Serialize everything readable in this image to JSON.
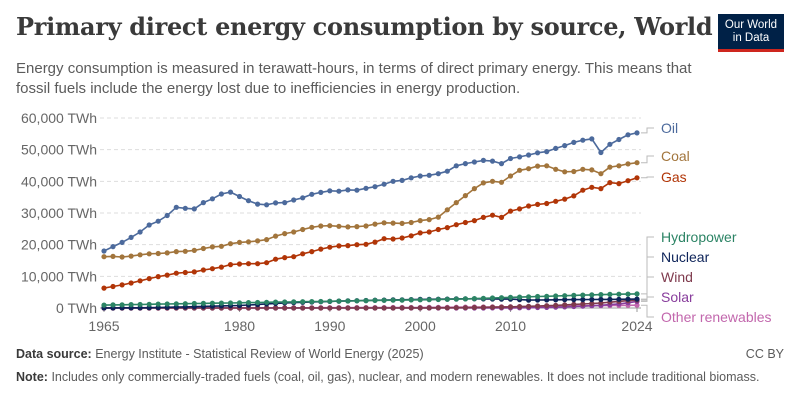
{
  "header": {
    "title": "Primary direct energy consumption by source, World",
    "subtitle": "Energy consumption is measured in terawatt-hours, in terms of direct primary energy. This means that fossil fuels include the energy lost due to inefficiencies in energy production.",
    "logo_line1": "Our World",
    "logo_line2": "in Data"
  },
  "footer": {
    "source_label": "Data source:",
    "source_text": "Energy Institute - Statistical Review of World Energy (2025)",
    "license": "CC BY",
    "note_label": "Note:",
    "note_text": "Includes only commercially-traded fuels (coal, oil, gas), nuclear, and modern renewables. It does not include traditional biomass."
  },
  "chart_data": {
    "type": "line",
    "title": "Primary direct energy consumption by source, World",
    "xlabel": "",
    "ylabel": "",
    "x_start": 1965,
    "x_end": 2024,
    "xlim": [
      1965,
      2024
    ],
    "ylim": [
      0,
      60000
    ],
    "y_ticks": [
      0,
      10000,
      20000,
      30000,
      40000,
      50000,
      60000
    ],
    "y_tick_labels": [
      "0 TWh",
      "10,000 TWh",
      "20,000 TWh",
      "30,000 TWh",
      "40,000 TWh",
      "50,000 TWh",
      "60,000 TWh"
    ],
    "x_ticks": [
      1965,
      1980,
      1990,
      2000,
      2010,
      2024
    ],
    "x_tick_labels": [
      "1965",
      "1980",
      "1990",
      "2000",
      "2010",
      "2024"
    ],
    "grid": "horizontal dashed",
    "legend": "right, labels at line ends",
    "series": [
      {
        "name": "Oil",
        "color": "#4c6a9c",
        "keypoints": [
          [
            1965,
            18000
          ],
          [
            1966,
            19400
          ],
          [
            1967,
            20700
          ],
          [
            1968,
            22300
          ],
          [
            1969,
            24000
          ],
          [
            1970,
            26200
          ],
          [
            1971,
            27400
          ],
          [
            1972,
            29200
          ],
          [
            1973,
            31800
          ],
          [
            1974,
            31500
          ],
          [
            1975,
            31300
          ],
          [
            1976,
            33300
          ],
          [
            1977,
            34500
          ],
          [
            1978,
            36000
          ],
          [
            1979,
            36600
          ],
          [
            1980,
            35200
          ],
          [
            1981,
            33900
          ],
          [
            1982,
            32800
          ],
          [
            1983,
            32600
          ],
          [
            1984,
            33200
          ],
          [
            1985,
            33300
          ],
          [
            1986,
            34100
          ],
          [
            1987,
            34800
          ],
          [
            1988,
            35900
          ],
          [
            1989,
            36500
          ],
          [
            1990,
            37000
          ],
          [
            1991,
            36900
          ],
          [
            1992,
            37300
          ],
          [
            1993,
            37200
          ],
          [
            1994,
            37800
          ],
          [
            1995,
            38300
          ],
          [
            1996,
            39100
          ],
          [
            1997,
            40000
          ],
          [
            1998,
            40300
          ],
          [
            1999,
            41100
          ],
          [
            2000,
            41700
          ],
          [
            2001,
            41900
          ],
          [
            2002,
            42400
          ],
          [
            2003,
            43200
          ],
          [
            2004,
            44900
          ],
          [
            2005,
            45600
          ],
          [
            2006,
            46100
          ],
          [
            2007,
            46600
          ],
          [
            2008,
            46400
          ],
          [
            2009,
            45600
          ],
          [
            2010,
            47200
          ],
          [
            2011,
            47700
          ],
          [
            2012,
            48300
          ],
          [
            2013,
            49000
          ],
          [
            2014,
            49400
          ],
          [
            2015,
            50400
          ],
          [
            2016,
            51300
          ],
          [
            2017,
            52300
          ],
          [
            2018,
            53000
          ],
          [
            2019,
            53400
          ],
          [
            2020,
            49100
          ],
          [
            2021,
            51700
          ],
          [
            2022,
            53200
          ],
          [
            2023,
            54700
          ],
          [
            2024,
            55300
          ]
        ]
      },
      {
        "name": "Coal",
        "color": "#a2753c",
        "keypoints": [
          [
            1965,
            16200
          ],
          [
            1966,
            16300
          ],
          [
            1967,
            16100
          ],
          [
            1968,
            16400
          ],
          [
            1969,
            16800
          ],
          [
            1970,
            17100
          ],
          [
            1971,
            17200
          ],
          [
            1972,
            17400
          ],
          [
            1973,
            17800
          ],
          [
            1974,
            17900
          ],
          [
            1975,
            18200
          ],
          [
            1976,
            18800
          ],
          [
            1977,
            19300
          ],
          [
            1978,
            19500
          ],
          [
            1979,
            20300
          ],
          [
            1980,
            20700
          ],
          [
            1981,
            20900
          ],
          [
            1982,
            21200
          ],
          [
            1983,
            21600
          ],
          [
            1984,
            22700
          ],
          [
            1985,
            23500
          ],
          [
            1986,
            24000
          ],
          [
            1987,
            24800
          ],
          [
            1988,
            25500
          ],
          [
            1989,
            25900
          ],
          [
            1990,
            26000
          ],
          [
            1991,
            25800
          ],
          [
            1992,
            25600
          ],
          [
            1993,
            25700
          ],
          [
            1994,
            25900
          ],
          [
            1995,
            26500
          ],
          [
            1996,
            26900
          ],
          [
            1997,
            26800
          ],
          [
            1998,
            26700
          ],
          [
            1999,
            27000
          ],
          [
            2000,
            27600
          ],
          [
            2001,
            27900
          ],
          [
            2002,
            28700
          ],
          [
            2003,
            31000
          ],
          [
            2004,
            33300
          ],
          [
            2005,
            35500
          ],
          [
            2006,
            37700
          ],
          [
            2007,
            39500
          ],
          [
            2008,
            40000
          ],
          [
            2009,
            39700
          ],
          [
            2010,
            41700
          ],
          [
            2011,
            43500
          ],
          [
            2012,
            44000
          ],
          [
            2013,
            44800
          ],
          [
            2014,
            44900
          ],
          [
            2015,
            43800
          ],
          [
            2016,
            43000
          ],
          [
            2017,
            43100
          ],
          [
            2018,
            43800
          ],
          [
            2019,
            43600
          ],
          [
            2020,
            42400
          ],
          [
            2021,
            44500
          ],
          [
            2022,
            44900
          ],
          [
            2023,
            45500
          ],
          [
            2024,
            45900
          ]
        ]
      },
      {
        "name": "Gas",
        "color": "#b13507",
        "keypoints": [
          [
            1965,
            6300
          ],
          [
            1966,
            6800
          ],
          [
            1967,
            7300
          ],
          [
            1968,
            7900
          ],
          [
            1969,
            8600
          ],
          [
            1970,
            9300
          ],
          [
            1971,
            9900
          ],
          [
            1972,
            10400
          ],
          [
            1973,
            11000
          ],
          [
            1974,
            11200
          ],
          [
            1975,
            11400
          ],
          [
            1976,
            12000
          ],
          [
            1977,
            12400
          ],
          [
            1978,
            12900
          ],
          [
            1979,
            13700
          ],
          [
            1980,
            13900
          ],
          [
            1981,
            14000
          ],
          [
            1982,
            14000
          ],
          [
            1983,
            14300
          ],
          [
            1984,
            15400
          ],
          [
            1985,
            15900
          ],
          [
            1986,
            16200
          ],
          [
            1987,
            17100
          ],
          [
            1988,
            17800
          ],
          [
            1989,
            18600
          ],
          [
            1990,
            19200
          ],
          [
            1991,
            19600
          ],
          [
            1992,
            19700
          ],
          [
            1993,
            20000
          ],
          [
            1994,
            20100
          ],
          [
            1995,
            20800
          ],
          [
            1996,
            21900
          ],
          [
            1997,
            21800
          ],
          [
            1998,
            22100
          ],
          [
            1999,
            22800
          ],
          [
            2000,
            23700
          ],
          [
            2001,
            24000
          ],
          [
            2002,
            24800
          ],
          [
            2003,
            25400
          ],
          [
            2004,
            26300
          ],
          [
            2005,
            27000
          ],
          [
            2006,
            27600
          ],
          [
            2007,
            28600
          ],
          [
            2008,
            29300
          ],
          [
            2009,
            28600
          ],
          [
            2010,
            30600
          ],
          [
            2011,
            31300
          ],
          [
            2012,
            32200
          ],
          [
            2013,
            32700
          ],
          [
            2014,
            33000
          ],
          [
            2015,
            33700
          ],
          [
            2016,
            34400
          ],
          [
            2017,
            35400
          ],
          [
            2018,
            37200
          ],
          [
            2019,
            38100
          ],
          [
            2020,
            37700
          ],
          [
            2021,
            39600
          ],
          [
            2022,
            39300
          ],
          [
            2023,
            40200
          ],
          [
            2024,
            41100
          ]
        ]
      },
      {
        "name": "Hydropower",
        "color": "#2c8465",
        "keypoints": [
          [
            1965,
            920
          ],
          [
            1970,
            1170
          ],
          [
            1975,
            1410
          ],
          [
            1980,
            1640
          ],
          [
            1985,
            1900
          ],
          [
            1990,
            2110
          ],
          [
            1995,
            2400
          ],
          [
            2000,
            2580
          ],
          [
            2005,
            2860
          ],
          [
            2010,
            3350
          ],
          [
            2015,
            3800
          ],
          [
            2020,
            4240
          ],
          [
            2024,
            4450
          ]
        ]
      },
      {
        "name": "Nuclear",
        "color": "#0d2359",
        "keypoints": [
          [
            1965,
            30
          ],
          [
            1970,
            90
          ],
          [
            1975,
            420
          ],
          [
            1980,
            800
          ],
          [
            1985,
            1600
          ],
          [
            1990,
            2100
          ],
          [
            1995,
            2450
          ],
          [
            2000,
            2700
          ],
          [
            2005,
            2900
          ],
          [
            2006,
            2900
          ],
          [
            2010,
            2800
          ],
          [
            2012,
            2500
          ],
          [
            2015,
            2600
          ],
          [
            2020,
            2700
          ],
          [
            2024,
            2800
          ]
        ]
      },
      {
        "name": "Wind",
        "color": "#7f3a4d",
        "keypoints": [
          [
            1965,
            0
          ],
          [
            1995,
            5
          ],
          [
            2000,
            31
          ],
          [
            2005,
            104
          ],
          [
            2010,
            342
          ],
          [
            2015,
            831
          ],
          [
            2018,
            1270
          ],
          [
            2020,
            1590
          ],
          [
            2022,
            2100
          ],
          [
            2023,
            2325
          ],
          [
            2024,
            2500
          ]
        ]
      },
      {
        "name": "Solar",
        "color": "#883d9c",
        "keypoints": [
          [
            1965,
            0
          ],
          [
            2005,
            4
          ],
          [
            2010,
            32
          ],
          [
            2012,
            100
          ],
          [
            2015,
            257
          ],
          [
            2018,
            575
          ],
          [
            2020,
            850
          ],
          [
            2022,
            1310
          ],
          [
            2023,
            1640
          ],
          [
            2024,
            2100
          ]
        ]
      },
      {
        "name": "Other renewables",
        "color": "#c267ad",
        "keypoints": [
          [
            1965,
            0
          ],
          [
            1980,
            30
          ],
          [
            1990,
            90
          ],
          [
            2000,
            170
          ],
          [
            2010,
            390
          ],
          [
            2015,
            560
          ],
          [
            2020,
            770
          ],
          [
            2024,
            870
          ]
        ]
      }
    ]
  }
}
